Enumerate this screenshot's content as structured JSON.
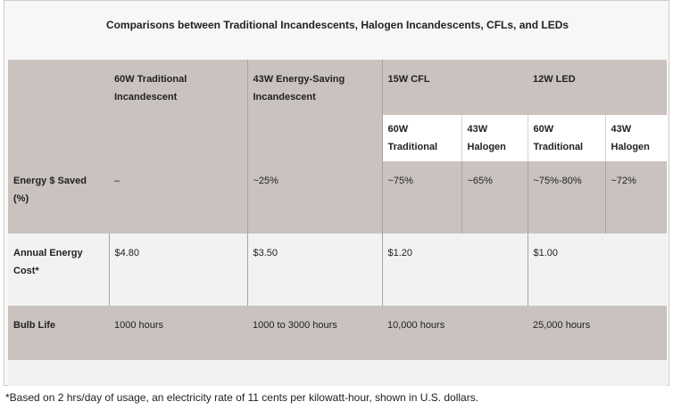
{
  "title": "Comparisons between Traditional Incandescents, Halogen Incandescents, CFLs, and LEDs",
  "headers": {
    "col1": "60W Traditional Incandescent",
    "col2": "43W Energy-Saving Incandescent",
    "col3": "15W CFL",
    "col4": "12W LED",
    "sub_traditional": "60W Traditional",
    "sub_halogen": "43W Halogen"
  },
  "rows": {
    "energy_saved": {
      "label": "Energy $ Saved (%)",
      "trad": "–",
      "halogen": "~25%",
      "cfl_trad": "~75%",
      "cfl_hal": "~65%",
      "led_trad": "~75%-80%",
      "led_hal": "~72%"
    },
    "annual_cost": {
      "label": "Annual Energy Cost*",
      "trad": "$4.80",
      "halogen": "$3.50",
      "cfl": "$1.20",
      "led": "$1.00"
    },
    "bulb_life": {
      "label": "Bulb Life",
      "trad": "1000 hours",
      "halogen": "1000 to 3000 hours",
      "cfl": "10,000 hours",
      "led": "25,000 hours"
    }
  },
  "footnote": "*Based on 2 hrs/day of usage, an electricity rate of 11 cents per kilowatt-hour, shown in U.S. dollars."
}
